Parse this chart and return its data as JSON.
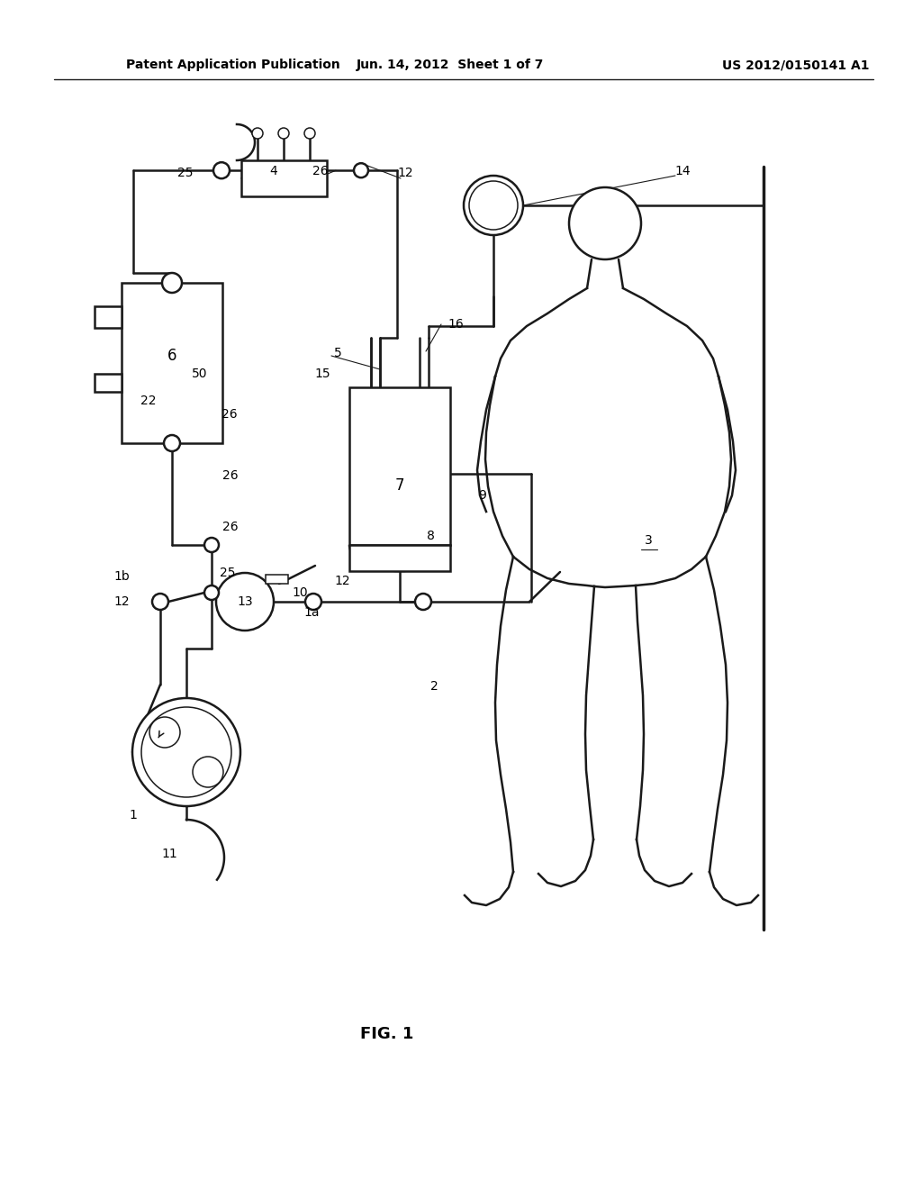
{
  "header_left": "Patent Application Publication",
  "header_center": "Jun. 14, 2012  Sheet 1 of 7",
  "header_right": "US 2012/0150141 A1",
  "figure_label": "FIG. 1",
  "bg_color": "#ffffff",
  "line_color": "#1a1a1a",
  "fig_width": 10.24,
  "fig_height": 13.2
}
